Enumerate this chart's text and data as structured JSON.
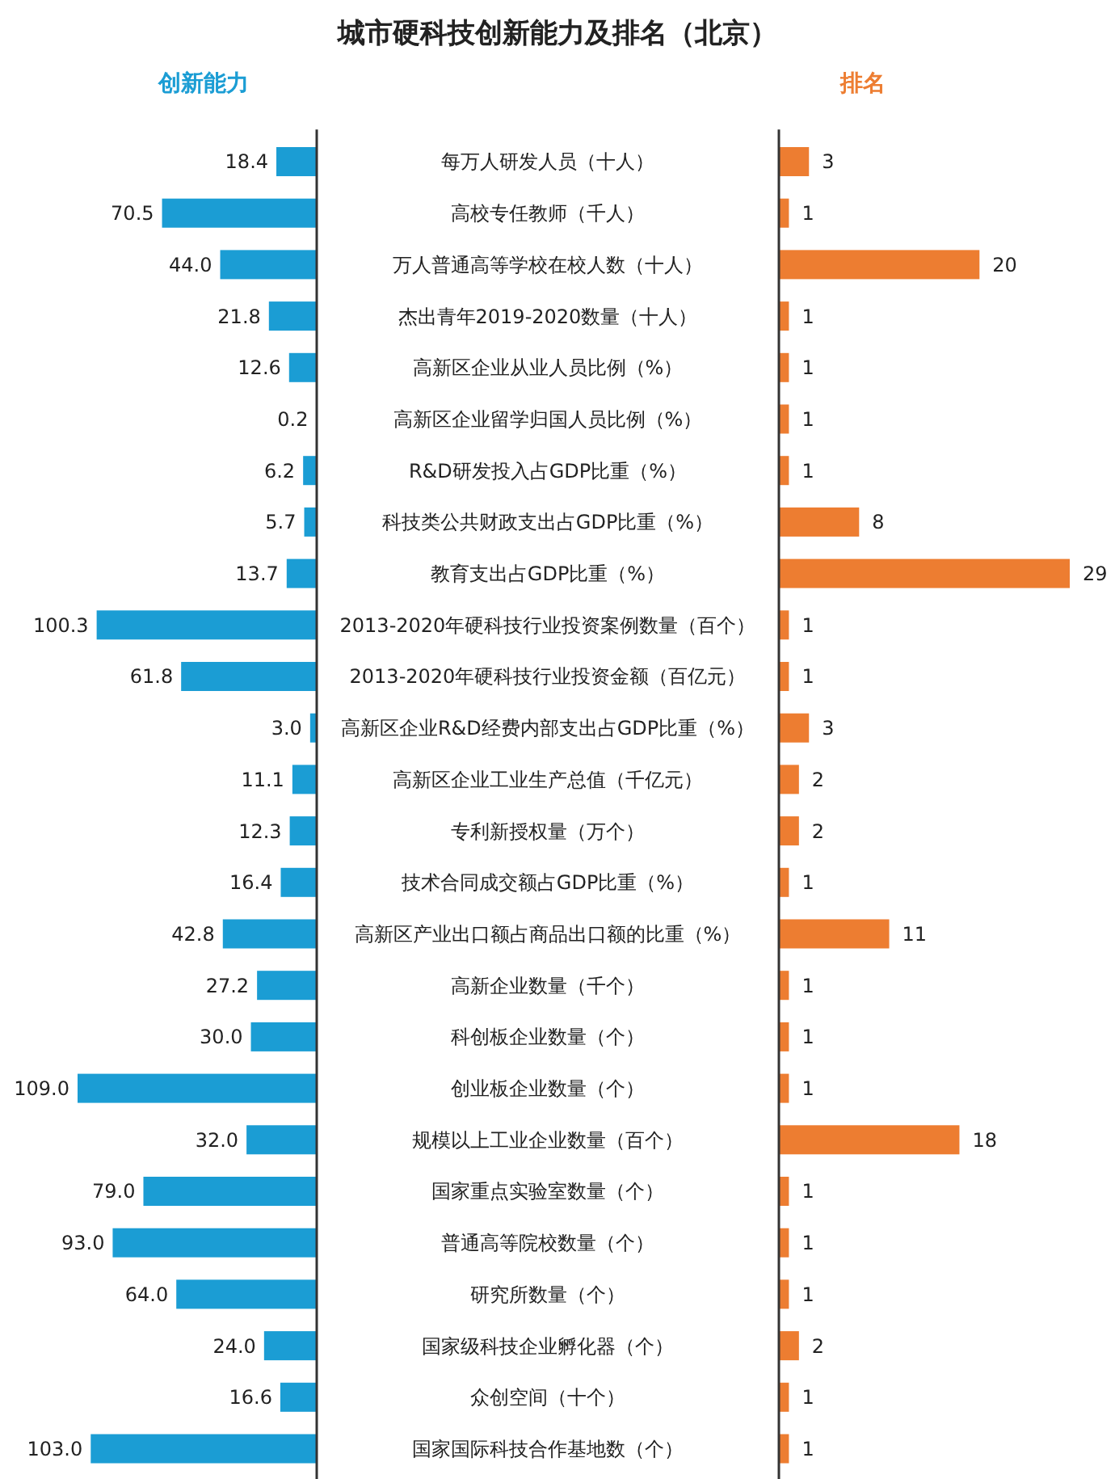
{
  "chart_data": [
    {
      "type": "bar",
      "orientation": "horizontal",
      "title": "城市硬科技创新能力及排名（北京）",
      "subtitle": "创新能力",
      "color": "#1b9dd4",
      "categories": [
        "每万人研发人员（十人）",
        "高校专任教师（千人）",
        "万人普通高等学校在校人数（十人）",
        "杰出青年2019-2020数量（十人）",
        "高新区企业从业人员比例（%）",
        "高新区企业留学归国人员比例（%）",
        "R&D研发投入占GDP比重（%）",
        "科技类公共财政支出占GDP比重（%）",
        "教育支出占GDP比重（%）",
        "2013-2020年硬科技行业投资案例数量（百个）",
        "2013-2020年硬科技行业投资金额（百亿元）",
        "高新区企业R&D经费内部支出占GDP比重（%）",
        "高新区企业工业生产总值（千亿元）",
        "专利新授权量（万个）",
        "技术合同成交额占GDP比重（%）",
        "高新区产业出口额占商品出口额的比重（%）",
        "高新企业数量（千个）",
        "科创板企业数量（个）",
        "创业板企业数量（个）",
        "规模以上工业企业数量（百个）",
        "国家重点实验室数量（个）",
        "普通高等院校数量（个）",
        "研究所数量（个）",
        "国家级科技企业孵化器（个）",
        "众创空间（十个）",
        "国家国际科技合作基地数（个）"
      ],
      "values": [
        18.4,
        70.5,
        44.0,
        21.8,
        12.6,
        0.2,
        6.2,
        5.7,
        13.7,
        100.3,
        61.8,
        3.0,
        11.1,
        12.3,
        16.4,
        42.8,
        27.2,
        30.0,
        109.0,
        32.0,
        79.0,
        93.0,
        64.0,
        24.0,
        16.6,
        103.0
      ],
      "value_labels": [
        "18.4",
        "70.5",
        "44.0",
        "21.8",
        "12.6",
        "0.2",
        "6.2",
        "5.7",
        "13.7",
        "100.3",
        "61.8",
        "3.0",
        "11.1",
        "12.3",
        "16.4",
        "42.8",
        "27.2",
        "30.0",
        "109.0",
        "32.0",
        "79.0",
        "93.0",
        "64.0",
        "24.0",
        "16.6",
        "103.0"
      ]
    },
    {
      "type": "bar",
      "orientation": "horizontal",
      "title": "排名",
      "color": "#ed7d31",
      "data_labels": true,
      "categories": [
        null,
        null,
        null,
        null,
        null,
        null,
        null,
        null,
        null,
        null,
        null,
        null,
        null,
        null,
        null,
        null,
        null,
        null,
        null,
        null,
        null,
        null,
        null,
        null,
        null,
        null
      ],
      "values": [
        3,
        1,
        20,
        1,
        1,
        1,
        1,
        8,
        29,
        1,
        1,
        3,
        2,
        2,
        1,
        11,
        1,
        1,
        1,
        18,
        1,
        1,
        1,
        2,
        1,
        1
      ]
    }
  ]
}
